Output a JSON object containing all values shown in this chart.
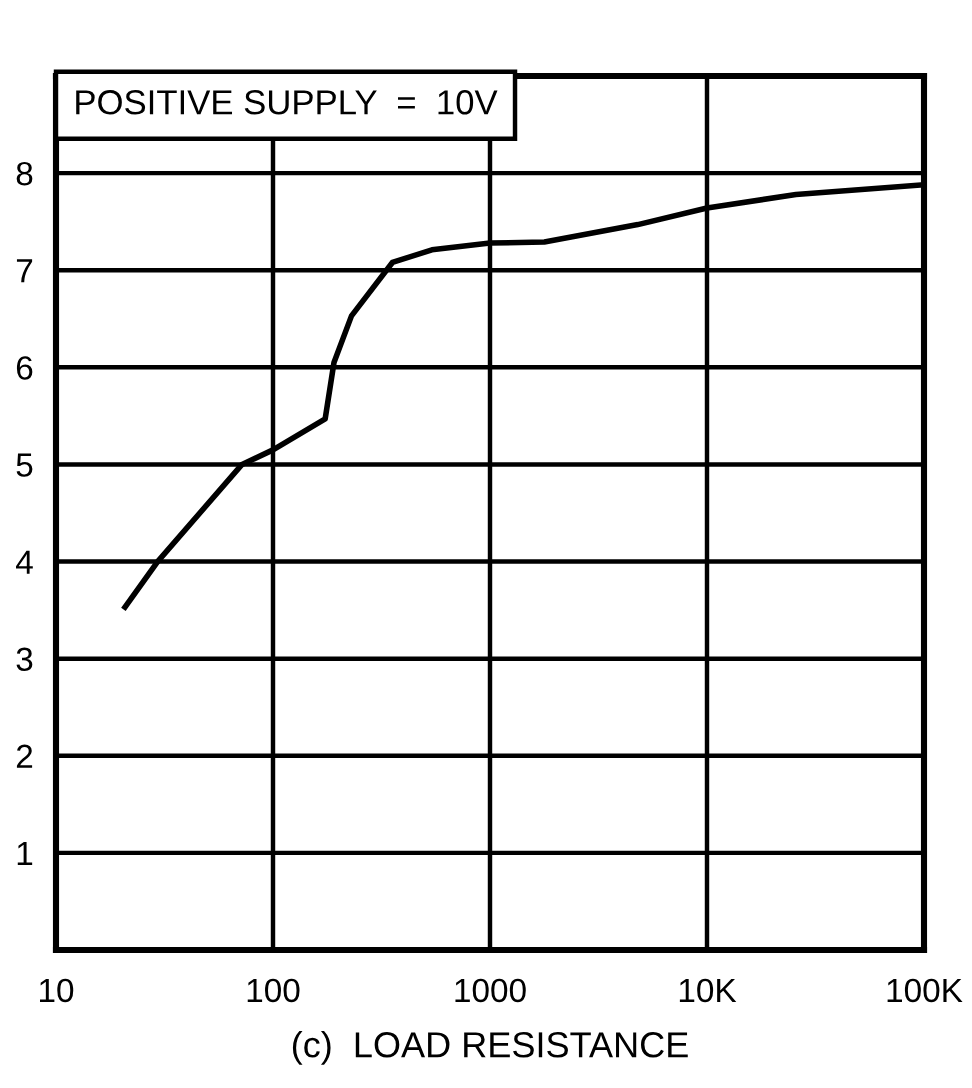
{
  "chart_data": {
    "type": "line",
    "xlabel": "(c)  LOAD RESISTANCE",
    "annotations": [
      "POSITIVE SUPPLY  =  10V"
    ],
    "log": "x",
    "grid": true,
    "marker": "none",
    "line_style": "solid",
    "xlim": [
      10,
      100000
    ],
    "xticks": [
      10,
      100,
      1000,
      {
        "value": 10000,
        "label": "10K"
      },
      {
        "value": 100000,
        "label": "100K"
      }
    ],
    "ylim": [
      0,
      9
    ],
    "yticks": [
      {
        "value": 0,
        "label": null
      },
      1,
      2,
      3,
      4,
      5,
      6,
      7,
      8,
      {
        "value": 9,
        "label": null
      }
    ],
    "series": [
      {
        "color": "#000000",
        "x": [
          20.8,
          29.4,
          72,
          100,
          174,
          191,
          230,
          355,
          540,
          1000,
          1780,
          4800,
          10000,
          25700,
          100000
        ],
        "values": [
          3.53,
          4.0,
          5.0,
          5.15,
          5.47,
          6.05,
          6.53,
          7.08,
          7.21,
          7.28,
          7.29,
          7.47,
          7.64,
          7.78,
          7.88
        ]
      }
    ]
  }
}
